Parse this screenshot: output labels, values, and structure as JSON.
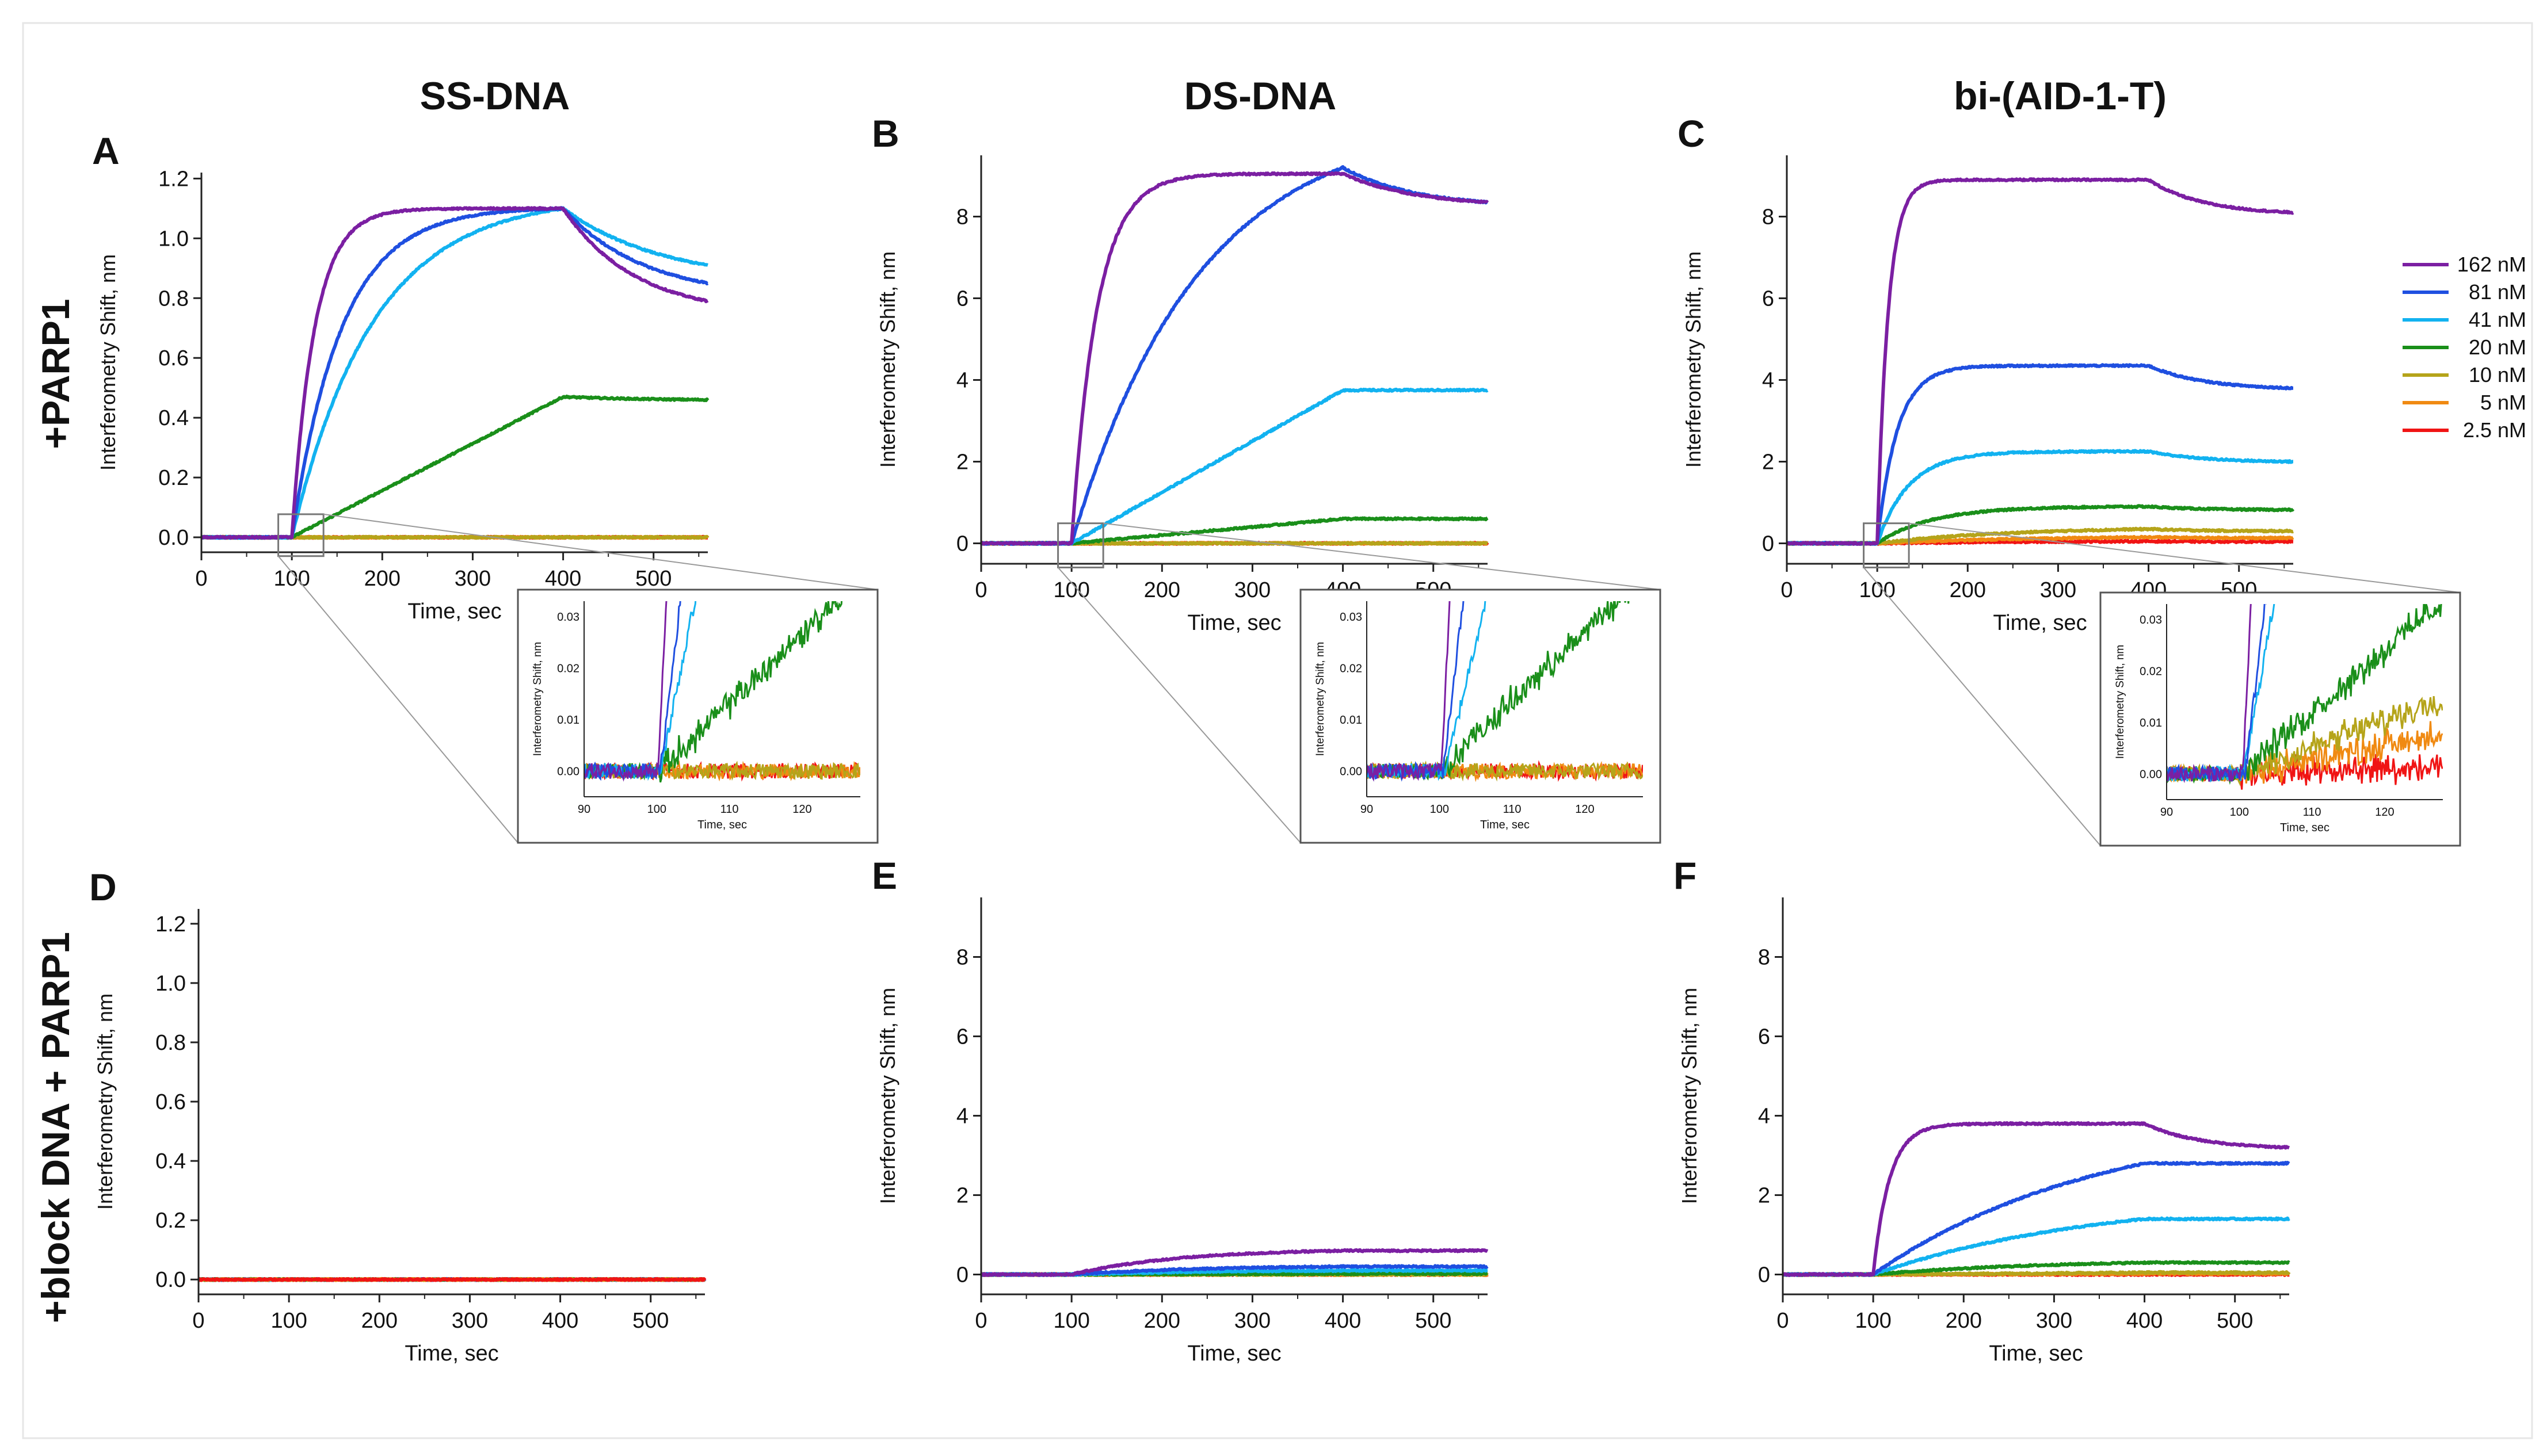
{
  "column_titles": [
    "SS-DNA",
    "DS-DNA",
    "bi-(AID-1-T)"
  ],
  "row_titles": [
    "+PARP1",
    "+block DNA + PARP1"
  ],
  "legend": [
    {
      "label": "162 nM",
      "color": "#7b1fa2"
    },
    {
      "label": "81 nM",
      "color": "#1f4fe0"
    },
    {
      "label": "41 nM",
      "color": "#12b2f0"
    },
    {
      "label": "20 nM",
      "color": "#1a8f1a"
    },
    {
      "label": "10 nM",
      "color": "#b5a41a"
    },
    {
      "label": "5 nM",
      "color": "#f08a12"
    },
    {
      "label": "2.5 nM",
      "color": "#f01414"
    }
  ],
  "chart_data": [
    {
      "panel": "A",
      "type": "line",
      "xlabel": "Time, sec",
      "ylabel": "Interferometry Shift, nm",
      "xlim": [
        0,
        560
      ],
      "ylim": [
        -0.05,
        1.22
      ],
      "xticks": [
        0,
        100,
        200,
        300,
        400,
        500
      ],
      "xtick_labels": [
        "0",
        "100",
        "200",
        "300",
        "400",
        "500"
      ],
      "yticks": [
        0,
        0.2,
        0.4,
        0.6,
        0.8,
        1.0,
        1.2
      ],
      "ytick_labels": [
        "0.0",
        "0.2",
        "0.4",
        "0.6",
        "0.8",
        "1.0",
        "1.2"
      ],
      "series": [
        {
          "name": "162 nM",
          "assoc_tau": 25,
          "peak": 1.1,
          "end": 0.79,
          "kd_tau": 80,
          "linear": false
        },
        {
          "name": "81 nM",
          "assoc_tau": 55,
          "peak": 1.1,
          "end": 0.85,
          "kd_tau": 90,
          "linear": false
        },
        {
          "name": "41 nM",
          "assoc_tau": 90,
          "peak": 1.1,
          "end": 0.91,
          "kd_tau": 110,
          "linear": false
        },
        {
          "name": "20 nM",
          "assoc_tau": 0,
          "peak": 0.47,
          "end": 0.46,
          "kd_tau": 100,
          "linear": true
        },
        {
          "name": "10 nM",
          "assoc_tau": 0,
          "peak": 0.0,
          "end": 0.0,
          "kd_tau": 100,
          "linear": true
        },
        {
          "name": "5 nM",
          "assoc_tau": 0,
          "peak": 0.0,
          "end": 0.0,
          "kd_tau": 100,
          "linear": true
        },
        {
          "name": "2.5 nM",
          "assoc_tau": 0,
          "peak": 0.0,
          "end": 0.0,
          "kd_tau": 100,
          "linear": true
        }
      ],
      "inset": {
        "xlim": [
          90,
          128
        ],
        "ylim": [
          -0.005,
          0.033
        ],
        "xtick_labels": [
          "90",
          "100",
          "110",
          "120"
        ],
        "ytick_labels": [
          "0.00",
          "0.01",
          "0.02",
          "0.03"
        ],
        "xlabel": "Time, sec",
        "ylabel": "Interferometry Shift, nm",
        "series": [
          {
            "name": "162 nM",
            "start": 100.2,
            "slope": 0.03
          },
          {
            "name": "81 nM",
            "start": 100.5,
            "slope": 0.012
          },
          {
            "name": "41 nM",
            "start": 100.5,
            "slope": 0.007
          },
          {
            "name": "20 nM",
            "start": 100.3,
            "slope": 0.00135
          },
          {
            "name": "10 nM",
            "start": 999,
            "slope": 0
          },
          {
            "name": "5 nM",
            "start": 999,
            "slope": 0
          },
          {
            "name": "2.5 nM",
            "start": 999,
            "slope": 0
          }
        ]
      }
    },
    {
      "panel": "B",
      "type": "line",
      "xlabel": "Time, sec",
      "ylabel": "Interferometry Shift, nm",
      "xlim": [
        0,
        560
      ],
      "ylim": [
        -0.5,
        9.5
      ],
      "xticks": [
        0,
        100,
        200,
        300,
        400,
        500
      ],
      "xtick_labels": [
        "0",
        "100",
        "200",
        "300",
        "400",
        "500"
      ],
      "yticks": [
        0,
        2,
        4,
        6,
        8
      ],
      "ytick_labels": [
        "0",
        "2",
        "4",
        "6",
        "8"
      ],
      "series": [
        {
          "name": "162 nM",
          "assoc_tau": 28,
          "peak": 9.05,
          "end": 8.35,
          "kd_tau": 80,
          "linear": false
        },
        {
          "name": "81 nM",
          "assoc_tau": 140,
          "peak": 9.2,
          "end": 8.35,
          "kd_tau": 80,
          "linear": false
        },
        {
          "name": "41 nM",
          "assoc_tau": 0,
          "peak": 3.75,
          "end": 3.75,
          "kd_tau": 80,
          "linear": true
        },
        {
          "name": "20 nM",
          "assoc_tau": 0,
          "peak": 0.6,
          "end": 0.6,
          "kd_tau": 80,
          "linear": true
        },
        {
          "name": "10 nM",
          "assoc_tau": 0,
          "peak": 0.0,
          "end": 0.0,
          "kd_tau": 80,
          "linear": true
        },
        {
          "name": "5 nM",
          "assoc_tau": 0,
          "peak": 0.0,
          "end": 0.0,
          "kd_tau": 80,
          "linear": true
        },
        {
          "name": "2.5 nM",
          "assoc_tau": 0,
          "peak": 0.0,
          "end": 0.0,
          "kd_tau": 80,
          "linear": true
        }
      ],
      "inset": {
        "xlim": [
          90,
          128
        ],
        "ylim": [
          -0.005,
          0.033
        ],
        "xtick_labels": [
          "90",
          "100",
          "110",
          "120"
        ],
        "ytick_labels": [
          "0.00",
          "0.01",
          "0.02",
          "0.03"
        ],
        "xlabel": "Time, sec",
        "ylabel": "Interferometry Shift, nm",
        "series": [
          {
            "name": "162 nM",
            "start": 100.3,
            "slope": 0.03
          },
          {
            "name": "81 nM",
            "start": 100.5,
            "slope": 0.012
          },
          {
            "name": "41 nM",
            "start": 100.8,
            "slope": 0.006
          },
          {
            "name": "20 nM",
            "start": 100.0,
            "slope": 0.00135
          },
          {
            "name": "10 nM",
            "start": 999,
            "slope": 0
          },
          {
            "name": "5 nM",
            "start": 999,
            "slope": 0
          },
          {
            "name": "2.5 nM",
            "start": 999,
            "slope": 0
          }
        ]
      }
    },
    {
      "panel": "C",
      "type": "line",
      "xlabel": "Time, sec",
      "ylabel": "Interferometry Shift, nm",
      "xlim": [
        0,
        560
      ],
      "ylim": [
        -0.5,
        9.5
      ],
      "xticks": [
        0,
        100,
        200,
        300,
        400,
        500
      ],
      "xtick_labels": [
        "0",
        "100",
        "200",
        "300",
        "400",
        "500"
      ],
      "yticks": [
        0,
        2,
        4,
        6,
        8
      ],
      "ytick_labels": [
        "0",
        "2",
        "4",
        "6",
        "8"
      ],
      "series": [
        {
          "name": "162 nM",
          "assoc_tau": 12,
          "peak": 8.9,
          "end": 8.1,
          "kd_tau": 60,
          "linear": false
        },
        {
          "name": "81 nM",
          "assoc_tau": 22,
          "peak": 4.35,
          "end": 3.8,
          "kd_tau": 60,
          "linear": false
        },
        {
          "name": "41 nM",
          "assoc_tau": 35,
          "peak": 2.25,
          "end": 2.0,
          "kd_tau": 60,
          "linear": false
        },
        {
          "name": "20 nM",
          "assoc_tau": 60,
          "peak": 0.9,
          "end": 0.82,
          "kd_tau": 60,
          "linear": false
        },
        {
          "name": "10 nM",
          "assoc_tau": 150,
          "peak": 0.35,
          "end": 0.3,
          "kd_tau": 60,
          "linear": false
        },
        {
          "name": "5 nM",
          "assoc_tau": 180,
          "peak": 0.15,
          "end": 0.13,
          "kd_tau": 60,
          "linear": false
        },
        {
          "name": "2.5 nM",
          "assoc_tau": 200,
          "peak": 0.05,
          "end": 0.04,
          "kd_tau": 60,
          "linear": false
        }
      ],
      "inset": {
        "xlim": [
          90,
          128
        ],
        "ylim": [
          -0.005,
          0.033
        ],
        "xtick_labels": [
          "90",
          "100",
          "110",
          "120"
        ],
        "ytick_labels": [
          "0.00",
          "0.01",
          "0.02",
          "0.03"
        ],
        "xlabel": "Time, sec",
        "ylabel": "Interferometry Shift, nm",
        "series": [
          {
            "name": "162 nM",
            "start": 100.5,
            "slope": 0.03
          },
          {
            "name": "81 nM",
            "start": 100.8,
            "slope": 0.012
          },
          {
            "name": "41 nM",
            "start": 100.6,
            "slope": 0.008
          },
          {
            "name": "20 nM",
            "start": 100.0,
            "slope": 0.0012
          },
          {
            "name": "10 nM",
            "start": 100.0,
            "slope": 0.00052
          },
          {
            "name": "5 nM",
            "start": 100.0,
            "slope": 0.00028
          },
          {
            "name": "2.5 nM",
            "start": 100.0,
            "slope": 6e-05
          }
        ]
      }
    },
    {
      "panel": "D",
      "type": "line",
      "xlabel": "Time, sec",
      "ylabel": "Interferometry Shift, nm",
      "xlim": [
        0,
        560
      ],
      "ylim": [
        -0.05,
        1.25
      ],
      "xticks": [
        0,
        100,
        200,
        300,
        400,
        500
      ],
      "xtick_labels": [
        "0",
        "100",
        "200",
        "300",
        "400",
        "500"
      ],
      "yticks": [
        0,
        0.2,
        0.4,
        0.6,
        0.8,
        1.0,
        1.2
      ],
      "ytick_labels": [
        "0.0",
        "0.2",
        "0.4",
        "0.6",
        "0.8",
        "1.0",
        "1.2"
      ],
      "series": [
        {
          "name": "2.5 nM",
          "assoc_tau": 0,
          "peak": 0.0,
          "end": 0.0,
          "kd_tau": 80,
          "linear": true
        },
        {
          "name": "5 nM",
          "assoc_tau": 0,
          "peak": 0.0,
          "end": 0.0,
          "kd_tau": 80,
          "linear": true
        },
        {
          "name": "10 nM",
          "assoc_tau": 0,
          "peak": 0.0,
          "end": 0.0,
          "kd_tau": 80,
          "linear": true
        },
        {
          "name": "20 nM",
          "assoc_tau": 0,
          "peak": 0.0,
          "end": 0.0,
          "kd_tau": 80,
          "linear": true
        },
        {
          "name": "41 nM",
          "assoc_tau": 0,
          "peak": 0.0,
          "end": 0.0,
          "kd_tau": 80,
          "linear": true
        },
        {
          "name": "81 nM",
          "assoc_tau": 0,
          "peak": 0.0,
          "end": 0.0,
          "kd_tau": 80,
          "linear": true
        },
        {
          "name": "162 nM",
          "assoc_tau": 0,
          "peak": 0.0,
          "end": 0.0,
          "kd_tau": 80,
          "linear": true
        }
      ]
    },
    {
      "panel": "E",
      "type": "line",
      "xlabel": "Time, sec",
      "ylabel": "Interferometry Shift, nm",
      "xlim": [
        0,
        560
      ],
      "ylim": [
        -0.5,
        9.5
      ],
      "xticks": [
        0,
        100,
        200,
        300,
        400,
        500
      ],
      "xtick_labels": [
        "0",
        "100",
        "200",
        "300",
        "400",
        "500"
      ],
      "yticks": [
        0,
        2,
        4,
        6,
        8
      ],
      "ytick_labels": [
        "0",
        "2",
        "4",
        "6",
        "8"
      ],
      "series": [
        {
          "name": "162 nM",
          "assoc_tau": 120,
          "peak": 0.6,
          "end": 0.6,
          "kd_tau": 80,
          "linear": false
        },
        {
          "name": "81 nM",
          "assoc_tau": 150,
          "peak": 0.2,
          "end": 0.2,
          "kd_tau": 80,
          "linear": false
        },
        {
          "name": "41 nM",
          "assoc_tau": 150,
          "peak": 0.1,
          "end": 0.1,
          "kd_tau": 80,
          "linear": false
        },
        {
          "name": "20 nM",
          "assoc_tau": 0,
          "peak": 0.02,
          "end": 0.02,
          "kd_tau": 80,
          "linear": true
        },
        {
          "name": "10 nM",
          "assoc_tau": 0,
          "peak": 0.0,
          "end": 0.0,
          "kd_tau": 80,
          "linear": true
        },
        {
          "name": "5 nM",
          "assoc_tau": 0,
          "peak": 0.0,
          "end": 0.0,
          "kd_tau": 80,
          "linear": true
        },
        {
          "name": "2.5 nM",
          "assoc_tau": 0,
          "peak": 0.0,
          "end": 0.0,
          "kd_tau": 80,
          "linear": true
        }
      ]
    },
    {
      "panel": "F",
      "type": "line",
      "xlabel": "Time, sec",
      "ylabel": "Interferometry Shift, nm",
      "xlim": [
        0,
        560
      ],
      "ylim": [
        -0.5,
        9.5
      ],
      "xticks": [
        0,
        100,
        200,
        300,
        400,
        500
      ],
      "xtick_labels": [
        "0",
        "100",
        "200",
        "300",
        "400",
        "500"
      ],
      "yticks": [
        0,
        2,
        4,
        6,
        8
      ],
      "ytick_labels": [
        "0",
        "2",
        "4",
        "6",
        "8"
      ],
      "series": [
        {
          "name": "162 nM",
          "assoc_tau": 18,
          "peak": 3.8,
          "end": 3.2,
          "kd_tau": 60,
          "linear": false
        },
        {
          "name": "81 nM",
          "assoc_tau": 250,
          "peak": 2.8,
          "end": 2.8,
          "kd_tau": 80,
          "linear": false
        },
        {
          "name": "41 nM",
          "assoc_tau": 250,
          "peak": 1.4,
          "end": 1.4,
          "kd_tau": 80,
          "linear": false
        },
        {
          "name": "20 nM",
          "assoc_tau": 200,
          "peak": 0.3,
          "end": 0.3,
          "kd_tau": 80,
          "linear": false
        },
        {
          "name": "10 nM",
          "assoc_tau": 0,
          "peak": 0.05,
          "end": 0.05,
          "kd_tau": 80,
          "linear": true
        },
        {
          "name": "5 nM",
          "assoc_tau": 0,
          "peak": 0.02,
          "end": 0.02,
          "kd_tau": 80,
          "linear": true
        },
        {
          "name": "2.5 nM",
          "assoc_tau": 0,
          "peak": 0.0,
          "end": 0.0,
          "kd_tau": 80,
          "linear": true
        }
      ]
    }
  ]
}
